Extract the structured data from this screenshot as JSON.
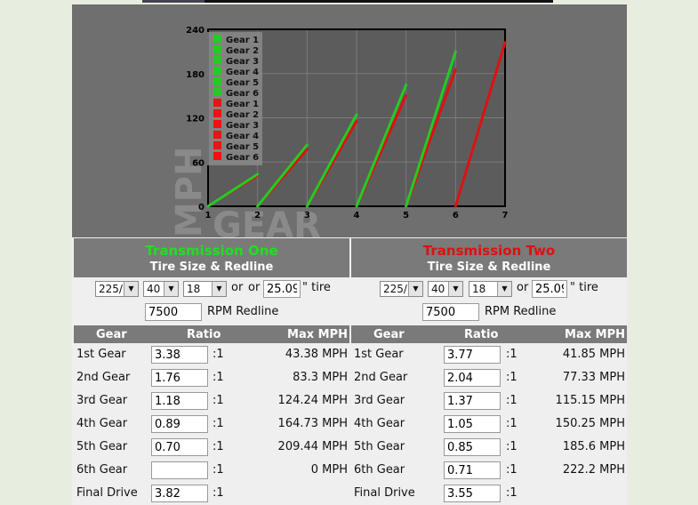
{
  "chart_data": {
    "type": "line",
    "watermark_y": "MPH",
    "watermark_x": "GEAR",
    "x_ticks": [
      "1",
      "2",
      "3",
      "4",
      "5",
      "6",
      "7"
    ],
    "y_ticks": [
      "0",
      "60",
      "120",
      "180",
      "240"
    ],
    "xlim": [
      1,
      7
    ],
    "ylim": [
      0,
      240
    ],
    "legend": [
      {
        "name": "Gear 1",
        "color": "#22cc22"
      },
      {
        "name": "Gear 2",
        "color": "#22cc22"
      },
      {
        "name": "Gear 3",
        "color": "#22cc22"
      },
      {
        "name": "Gear 4",
        "color": "#22cc22"
      },
      {
        "name": "Gear 5",
        "color": "#22cc22"
      },
      {
        "name": "Gear 6",
        "color": "#22cc22"
      },
      {
        "name": "Gear 1",
        "color": "#ee1111"
      },
      {
        "name": "Gear 2",
        "color": "#ee1111"
      },
      {
        "name": "Gear 3",
        "color": "#ee1111"
      },
      {
        "name": "Gear 4",
        "color": "#ee1111"
      },
      {
        "name": "Gear 5",
        "color": "#ee1111"
      },
      {
        "name": "Gear 6",
        "color": "#ee1111"
      }
    ],
    "series": [
      {
        "color": "#22cc22",
        "segments": [
          [
            1,
            0,
            2,
            43.38
          ],
          [
            2,
            0,
            3,
            83.3
          ],
          [
            3,
            0,
            4,
            124.24
          ],
          [
            4,
            0,
            5,
            164.73
          ],
          [
            5,
            0,
            6,
            209.44
          ]
        ]
      },
      {
        "color": "#dd1111",
        "segments": [
          [
            1,
            0,
            2,
            41.85
          ],
          [
            2,
            0,
            3,
            77.33
          ],
          [
            3,
            0,
            4,
            115.15
          ],
          [
            4,
            0,
            5,
            150.25
          ],
          [
            5,
            0,
            6,
            185.6
          ],
          [
            6,
            0,
            7,
            222.2
          ]
        ]
      }
    ]
  },
  "panels": [
    {
      "title": "Transmission One",
      "subtitle": "Tire Size & Redline",
      "tire_width": "225/",
      "tire_aspect": "40",
      "tire_rim": "18",
      "or1": "or",
      "or2": "or",
      "diameter": "25.09",
      "tire_suffix": "\" tire",
      "rpm": "7500",
      "rpm_label": "RPM Redline",
      "col_gear": "Gear",
      "col_ratio": "Ratio",
      "col_mph": "Max MPH",
      "rows": [
        {
          "gear": "1st Gear",
          "ratio": "3.38",
          "sep": ":1",
          "mph": "43.38 MPH"
        },
        {
          "gear": "2nd Gear",
          "ratio": "1.76",
          "sep": ":1",
          "mph": "83.3 MPH"
        },
        {
          "gear": "3rd Gear",
          "ratio": "1.18",
          "sep": ":1",
          "mph": "124.24 MPH"
        },
        {
          "gear": "4th Gear",
          "ratio": "0.89",
          "sep": ":1",
          "mph": "164.73 MPH"
        },
        {
          "gear": "5th Gear",
          "ratio": "0.70",
          "sep": ":1",
          "mph": "209.44 MPH"
        },
        {
          "gear": "6th Gear",
          "ratio": "",
          "sep": ":1",
          "mph": "0 MPH"
        },
        {
          "gear": "Final Drive",
          "ratio": "3.82",
          "sep": ":1",
          "mph": ""
        }
      ]
    },
    {
      "title": "Transmission Two",
      "subtitle": "Tire Size & Redline",
      "tire_width": "225/",
      "tire_aspect": "40",
      "tire_rim": "18",
      "or1": "or",
      "or2": "",
      "diameter": "25.09",
      "tire_suffix": "\" tire",
      "rpm": "7500",
      "rpm_label": "RPM Redline",
      "col_gear": "Gear",
      "col_ratio": "Ratio",
      "col_mph": "Max MPH",
      "rows": [
        {
          "gear": "1st Gear",
          "ratio": "3.77",
          "sep": ":1",
          "mph": "41.85 MPH"
        },
        {
          "gear": "2nd Gear",
          "ratio": "2.04",
          "sep": ":1",
          "mph": "77.33 MPH"
        },
        {
          "gear": "3rd Gear",
          "ratio": "1.37",
          "sep": ":1",
          "mph": "115.15 MPH"
        },
        {
          "gear": "4th Gear",
          "ratio": "1.05",
          "sep": ":1",
          "mph": "150.25 MPH"
        },
        {
          "gear": "5th Gear",
          "ratio": "0.85",
          "sep": ":1",
          "mph": "185.6 MPH"
        },
        {
          "gear": "6th Gear",
          "ratio": "0.71",
          "sep": ":1",
          "mph": "222.2 MPH"
        },
        {
          "gear": "Final Drive",
          "ratio": "3.55",
          "sep": ":1",
          "mph": ""
        }
      ]
    }
  ]
}
